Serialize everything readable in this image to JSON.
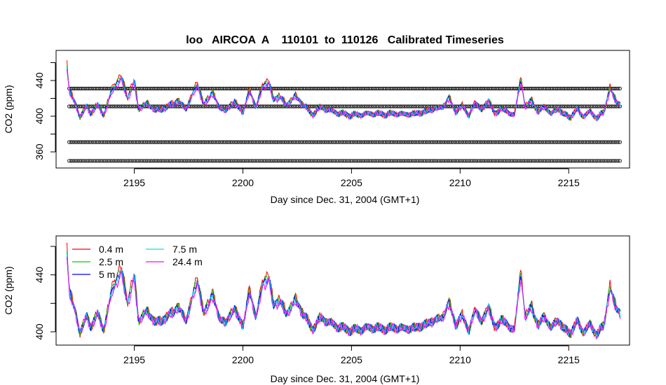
{
  "chart_data": [
    {
      "type": "line",
      "title": "loo   AIRCOA  A    110101  to  110126   Calibrated Timeseries",
      "xlabel": "Day since Dec. 31, 2004 (GMT+1)",
      "ylabel": "CO2 (ppm)",
      "xlim": [
        2191.4,
        2217.8
      ],
      "ylim": [
        347,
        475
      ],
      "x_ticks": [
        2195,
        2200,
        2205,
        2210,
        2215
      ],
      "y_ticks": [
        360,
        400,
        440
      ],
      "series": [
        {
          "name": "0.4 m",
          "color": "#ff0000",
          "offset": 2.0
        },
        {
          "name": "2.5 m",
          "color": "#00cd00",
          "offset": 1.2
        },
        {
          "name": "5 m",
          "color": "#0000ff",
          "offset": 0.4
        },
        {
          "name": "7.5 m",
          "color": "#00e5e5",
          "offset": -0.3
        },
        {
          "name": "24.4 m",
          "color": "#ff00ff",
          "offset": -1.0
        }
      ],
      "reference_levels": [
        431,
        411,
        371,
        350
      ],
      "reference_marker": "open-circle",
      "base_profile": {
        "x": [
          2191.9,
          2192.0,
          2192.2,
          2192.5,
          2192.8,
          2193.0,
          2193.3,
          2193.6,
          2194.0,
          2194.4,
          2194.7,
          2195.0,
          2195.2,
          2195.6,
          2196.0,
          2196.5,
          2197.0,
          2197.4,
          2197.9,
          2198.2,
          2198.6,
          2198.9,
          2199.2,
          2199.6,
          2200.0,
          2200.3,
          2200.6,
          2200.9,
          2201.2,
          2201.4,
          2201.7,
          2202.0,
          2202.4,
          2202.8,
          2203.2,
          2203.6,
          2204.0,
          2204.5,
          2205.0,
          2205.5,
          2206.0,
          2206.5,
          2207.0,
          2207.5,
          2208.0,
          2208.4,
          2208.8,
          2209.2,
          2209.5,
          2209.8,
          2210.1,
          2210.4,
          2210.7,
          2211.0,
          2211.3,
          2211.6,
          2211.9,
          2212.2,
          2212.5,
          2212.8,
          2213.0,
          2213.3,
          2213.6,
          2213.9,
          2214.2,
          2214.5,
          2214.8,
          2215.1,
          2215.4,
          2215.7,
          2216.0,
          2216.3,
          2216.6,
          2216.9,
          2217.1,
          2217.4
        ],
        "y": [
          455,
          430,
          418,
          400,
          410,
          404,
          412,
          402,
          430,
          442,
          420,
          438,
          408,
          414,
          406,
          410,
          417,
          408,
          436,
          412,
          426,
          410,
          406,
          416,
          404,
          428,
          410,
          432,
          438,
          418,
          422,
          412,
          422,
          412,
          402,
          410,
          406,
          403,
          401,
          402,
          403,
          402,
          403,
          402,
          403,
          405,
          408,
          410,
          420,
          404,
          412,
          400,
          416,
          406,
          418,
          402,
          409,
          404,
          402,
          440,
          410,
          417,
          404,
          411,
          402,
          409,
          401,
          400,
          407,
          400,
          405,
          398,
          404,
          430,
          420,
          412
        ]
      },
      "legend_position": "top-left of lower panel"
    }
  ]
}
